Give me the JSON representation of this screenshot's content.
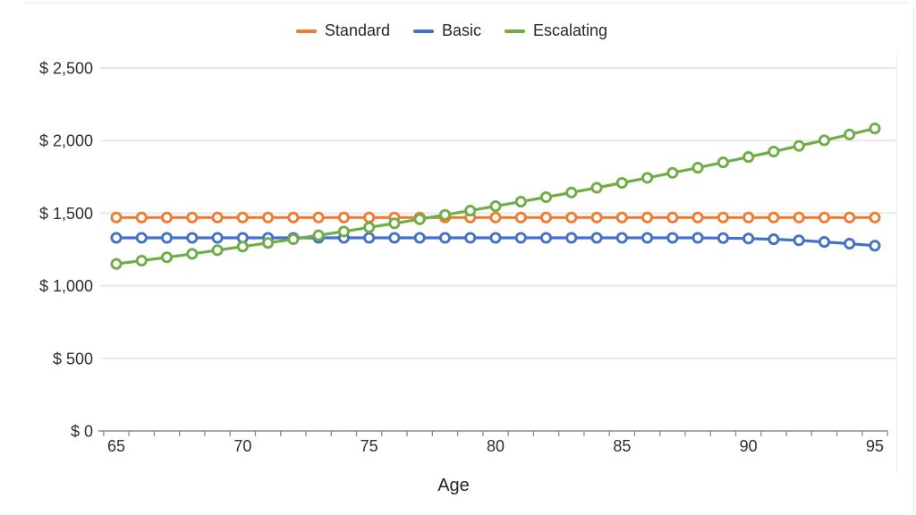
{
  "chart_data": {
    "type": "line",
    "title": "",
    "xlabel": "Age",
    "x": [
      65,
      66,
      67,
      68,
      69,
      70,
      71,
      72,
      73,
      74,
      75,
      76,
      77,
      78,
      79,
      80,
      81,
      82,
      83,
      84,
      85,
      86,
      87,
      88,
      89,
      90,
      91,
      92,
      93,
      94,
      95
    ],
    "x_tick_labels": [
      65,
      70,
      75,
      80,
      85,
      90,
      95
    ],
    "ylim": [
      0,
      2500
    ],
    "y_ticks": [
      {
        "value": 0,
        "label": "$ 0"
      },
      {
        "value": 500,
        "label": "$ 500"
      },
      {
        "value": 1000,
        "label": "$ 1,000"
      },
      {
        "value": 1500,
        "label": "$ 1,500"
      },
      {
        "value": 2000,
        "label": "$ 2,000"
      },
      {
        "value": 2500,
        "label": "$ 2,500"
      }
    ],
    "grid": "horizontal",
    "legend_position": "top-center",
    "marker": "open-circle",
    "series": [
      {
        "name": "Standard",
        "color": "#ED7D31",
        "values": [
          1470,
          1470,
          1470,
          1470,
          1470,
          1470,
          1470,
          1470,
          1470,
          1470,
          1470,
          1470,
          1470,
          1470,
          1470,
          1470,
          1470,
          1470,
          1470,
          1470,
          1470,
          1470,
          1470,
          1470,
          1470,
          1470,
          1470,
          1470,
          1470,
          1470,
          1470
        ]
      },
      {
        "name": "Basic",
        "color": "#4472C4",
        "values": [
          1330,
          1330,
          1330,
          1330,
          1330,
          1330,
          1330,
          1330,
          1330,
          1330,
          1330,
          1330,
          1330,
          1330,
          1330,
          1330,
          1330,
          1330,
          1330,
          1330,
          1330,
          1330,
          1330,
          1330,
          1328,
          1325,
          1320,
          1313,
          1302,
          1290,
          1276
        ]
      },
      {
        "name": "Escalating",
        "color": "#70AD47",
        "values": [
          1150,
          1173,
          1196,
          1220,
          1245,
          1270,
          1295,
          1321,
          1347,
          1374,
          1402,
          1430,
          1458,
          1488,
          1517,
          1548,
          1579,
          1610,
          1642,
          1675,
          1709,
          1743,
          1778,
          1813,
          1850,
          1887,
          1924,
          1963,
          2002,
          2042,
          2083
        ]
      }
    ],
    "style": {
      "text_color": "#2e2e2e",
      "axis_color": "#8c8c8c",
      "grid_color": "#e9e9e9",
      "background": "#ffffff"
    }
  }
}
